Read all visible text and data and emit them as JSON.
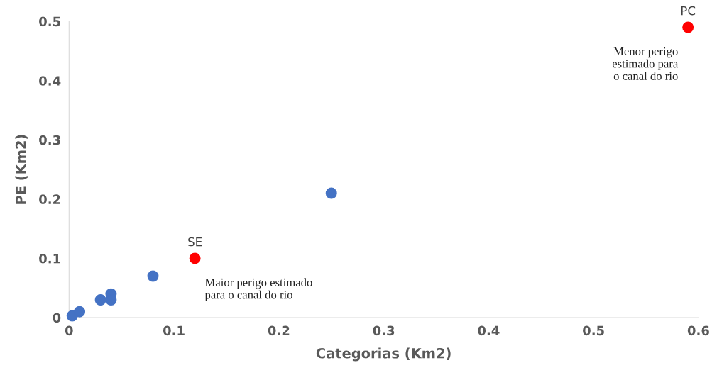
{
  "chart_data": {
    "type": "scatter",
    "xlabel": "Categorias (Km2)",
    "ylabel": "PE (Km2)",
    "x": [
      0.003,
      0.01,
      0.03,
      0.04,
      0.04,
      0.08,
      0.25,
      0.12,
      0.59
    ],
    "values": [
      0.003,
      0.01,
      0.03,
      0.04,
      0.03,
      0.07,
      0.21,
      0.1,
      0.49
    ],
    "colors": [
      "#4472c4",
      "#4472c4",
      "#4472c4",
      "#4472c4",
      "#4472c4",
      "#4472c4",
      "#4472c4",
      "#ff0000",
      "#ff0000"
    ],
    "xlim": [
      0,
      0.6
    ],
    "xticks": [
      {
        "value": 0,
        "label": "0"
      },
      0.1,
      0.2,
      0.3,
      0.4,
      0.5,
      0.6
    ],
    "ylim": [
      0,
      0.5
    ],
    "yticks": [
      {
        "value": 0,
        "label": "0"
      },
      0.1,
      0.2,
      0.3,
      0.4,
      0.5
    ],
    "marker": "circle",
    "grid": false,
    "legend": false,
    "annotations": [
      {
        "text": "SE",
        "x": 0.12,
        "y": 0.1
      },
      {
        "text": "PC",
        "x": 0.59,
        "y": 0.49
      },
      "Maior perigo estimado\npara o canal do rio",
      "Menor perigo\nestimado para\no canal do rio"
    ]
  }
}
